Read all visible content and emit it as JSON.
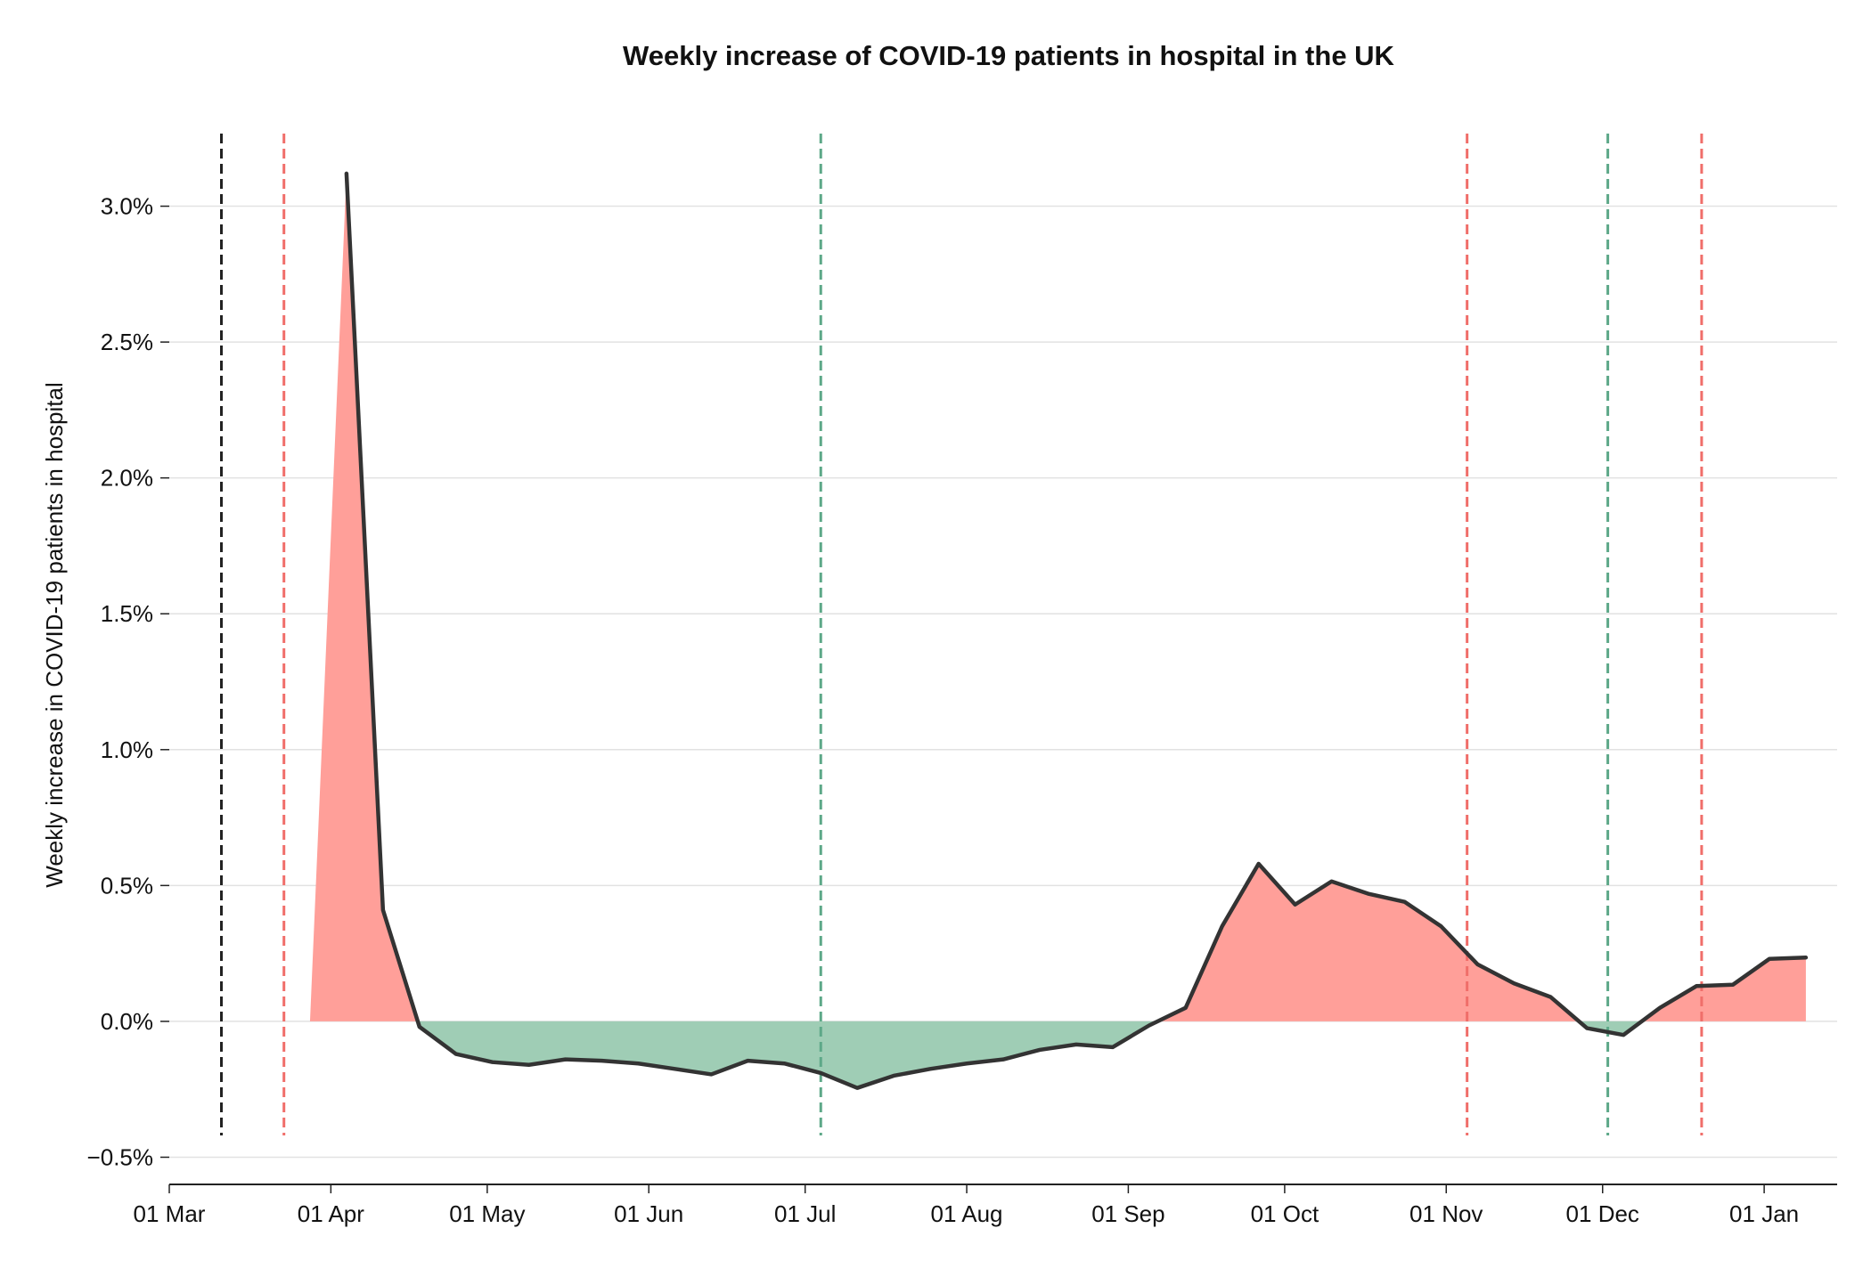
{
  "chart_data": {
    "type": "area",
    "title": "Weekly increase of COVID-19 patients in hospital in the UK",
    "xlabel": "",
    "ylabel": "Weekly increase in COVID-19 patients in hospital",
    "x_tick_labels": [
      "01 Mar",
      "01 Apr",
      "01 May",
      "01 Jun",
      "01 Jul",
      "01 Aug",
      "01 Sep",
      "01 Oct",
      "01 Nov",
      "01 Dec",
      "01 Jan"
    ],
    "x_tick_dates": [
      "2020-03-01",
      "2020-04-01",
      "2020-05-01",
      "2020-06-01",
      "2020-07-01",
      "2020-08-01",
      "2020-09-01",
      "2020-10-01",
      "2020-11-01",
      "2020-12-01",
      "2021-01-01"
    ],
    "y_tick_labels": [
      "−0.5%",
      "0.0%",
      "0.5%",
      "1.0%",
      "1.5%",
      "2.0%",
      "2.5%",
      "3.0%"
    ],
    "y_tick_values": [
      -0.5,
      0.0,
      0.5,
      1.0,
      1.5,
      2.0,
      2.5,
      3.0
    ],
    "xlim": [
      "2020-03-01",
      "2021-01-15"
    ],
    "ylim": [
      -0.6,
      3.3
    ],
    "grid": "horizontal",
    "positive_color": "#ff9f99",
    "negative_color": "#9fcdb5",
    "line_color": "#333333",
    "fill_start": "2020-03-28",
    "series": [
      {
        "x": [
          "2020-04-04",
          "2020-04-11",
          "2020-04-18",
          "2020-04-25",
          "2020-05-02",
          "2020-05-09",
          "2020-05-16",
          "2020-05-23",
          "2020-05-30",
          "2020-06-06",
          "2020-06-13",
          "2020-06-20",
          "2020-06-27",
          "2020-07-04",
          "2020-07-11",
          "2020-07-18",
          "2020-07-25",
          "2020-08-01",
          "2020-08-08",
          "2020-08-15",
          "2020-08-22",
          "2020-08-29",
          "2020-09-05",
          "2020-09-12",
          "2020-09-19",
          "2020-09-26",
          "2020-10-03",
          "2020-10-10",
          "2020-10-17",
          "2020-10-24",
          "2020-10-31",
          "2020-11-07",
          "2020-11-14",
          "2020-11-21",
          "2020-11-28",
          "2020-12-05",
          "2020-12-12",
          "2020-12-19",
          "2020-12-26",
          "2021-01-02",
          "2021-01-09"
        ],
        "y": [
          3.12,
          0.41,
          -0.02,
          -0.12,
          -0.15,
          -0.16,
          -0.14,
          -0.145,
          -0.155,
          -0.175,
          -0.195,
          -0.145,
          -0.155,
          -0.19,
          -0.245,
          -0.2,
          -0.175,
          -0.155,
          -0.14,
          -0.105,
          -0.085,
          -0.095,
          -0.015,
          0.05,
          0.35,
          0.58,
          0.43,
          0.515,
          0.47,
          0.44,
          0.35,
          0.21,
          0.14,
          0.09,
          -0.025,
          -0.05,
          0.05,
          0.13,
          0.135,
          0.23,
          0.235
        ]
      }
    ],
    "vertical_lines": [
      {
        "date": "2020-03-11",
        "color": "#222222"
      },
      {
        "date": "2020-03-23",
        "color": "#f06e6a"
      },
      {
        "date": "2020-07-04",
        "color": "#5da888"
      },
      {
        "date": "2020-11-05",
        "color": "#f06e6a"
      },
      {
        "date": "2020-12-02",
        "color": "#5da888"
      },
      {
        "date": "2020-12-20",
        "color": "#f06e6a"
      }
    ]
  }
}
